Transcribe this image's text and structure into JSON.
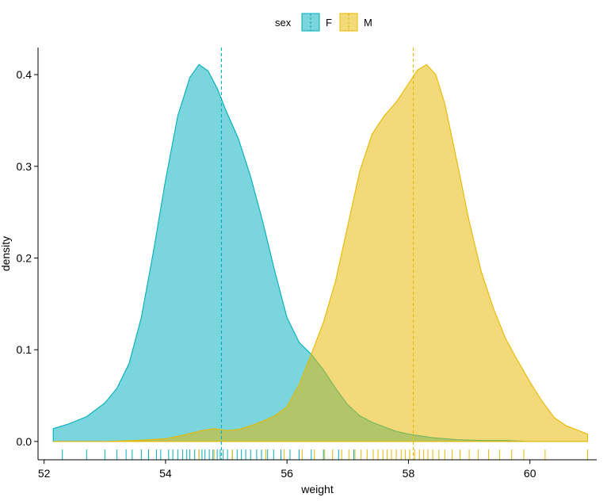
{
  "chart_data": {
    "type": "area",
    "title": "",
    "xlabel": "weight",
    "ylabel": "density",
    "xlim": [
      51.9,
      61.1
    ],
    "ylim": [
      -0.02,
      0.4295
    ],
    "x_ticks": [
      52,
      54,
      56,
      58,
      60
    ],
    "y_ticks": [
      0.0,
      0.1,
      0.2,
      0.3,
      0.4
    ],
    "x_tick_labels": [
      "52",
      "54",
      "56",
      "58",
      "60"
    ],
    "y_tick_labels": [
      "0.0",
      "0.1",
      "0.2",
      "0.3",
      "0.4"
    ],
    "grid": false,
    "legend": {
      "title": "sex",
      "placement": "top",
      "entries": [
        "F",
        "M"
      ]
    },
    "series": [
      {
        "name": "F",
        "color": "#00AFBB",
        "fill": "#00AFBB",
        "fill_opacity": 0.52,
        "mean": 54.92,
        "x": [
          52.15,
          52.4,
          52.7,
          53.0,
          53.2,
          53.4,
          53.6,
          53.8,
          54.0,
          54.2,
          54.4,
          54.55,
          54.7,
          54.85,
          55.0,
          55.2,
          55.4,
          55.6,
          55.8,
          56.0,
          56.2,
          56.4,
          56.6,
          56.8,
          57.0,
          57.2,
          57.4,
          57.6,
          57.8,
          58.0,
          58.4,
          58.8,
          59.2,
          59.6,
          60.0,
          60.5,
          60.95
        ],
        "y": [
          0.014,
          0.019,
          0.027,
          0.042,
          0.058,
          0.085,
          0.135,
          0.207,
          0.285,
          0.355,
          0.397,
          0.411,
          0.404,
          0.385,
          0.36,
          0.33,
          0.289,
          0.24,
          0.185,
          0.135,
          0.108,
          0.095,
          0.078,
          0.058,
          0.04,
          0.028,
          0.021,
          0.016,
          0.011,
          0.008,
          0.004,
          0.002,
          0.001,
          0.001,
          0.0,
          0.0,
          0.0
        ]
      },
      {
        "name": "M",
        "color": "#E7B800",
        "fill": "#E7B800",
        "fill_opacity": 0.52,
        "mean": 58.08,
        "x": [
          52.15,
          53.0,
          53.5,
          54.0,
          54.3,
          54.6,
          54.8,
          55.0,
          55.2,
          55.4,
          55.6,
          55.8,
          56.0,
          56.2,
          56.4,
          56.6,
          56.8,
          57.0,
          57.2,
          57.4,
          57.6,
          57.8,
          58.0,
          58.15,
          58.3,
          58.45,
          58.6,
          58.8,
          59.0,
          59.2,
          59.4,
          59.6,
          59.8,
          60.0,
          60.2,
          60.4,
          60.6,
          60.8,
          60.95
        ],
        "y": [
          0.0,
          0.0,
          0.001,
          0.003,
          0.007,
          0.012,
          0.014,
          0.012,
          0.013,
          0.017,
          0.022,
          0.028,
          0.038,
          0.062,
          0.095,
          0.13,
          0.175,
          0.235,
          0.295,
          0.335,
          0.355,
          0.37,
          0.39,
          0.405,
          0.411,
          0.4,
          0.368,
          0.305,
          0.24,
          0.185,
          0.145,
          0.112,
          0.088,
          0.065,
          0.044,
          0.026,
          0.017,
          0.012,
          0.008
        ]
      }
    ],
    "rug": [
      {
        "series": "F",
        "x": [
          52.3,
          52.7,
          53.0,
          53.2,
          53.35,
          53.45,
          53.6,
          53.72,
          53.85,
          53.92,
          54.05,
          54.12,
          54.2,
          54.28,
          54.35,
          54.4,
          54.48,
          54.55,
          54.6,
          54.65,
          54.72,
          54.78,
          54.85,
          54.9,
          54.95,
          55.02,
          55.1,
          55.18,
          55.25,
          55.32,
          55.4,
          55.5,
          55.58,
          55.68,
          55.78,
          55.9,
          56.05,
          56.2,
          56.4,
          56.6,
          56.85,
          57.1
        ]
      },
      {
        "series": "M",
        "x": [
          54.55,
          54.8,
          55.1,
          55.65,
          55.95,
          56.25,
          56.45,
          56.62,
          56.75,
          56.9,
          57.02,
          57.12,
          57.22,
          57.32,
          57.42,
          57.5,
          57.58,
          57.65,
          57.72,
          57.8,
          57.88,
          57.95,
          58.02,
          58.1,
          58.18,
          58.25,
          58.32,
          58.4,
          58.5,
          58.6,
          58.72,
          58.85,
          59.0,
          59.15,
          59.32,
          59.5,
          59.7,
          59.9,
          60.25,
          60.95
        ]
      }
    ]
  }
}
